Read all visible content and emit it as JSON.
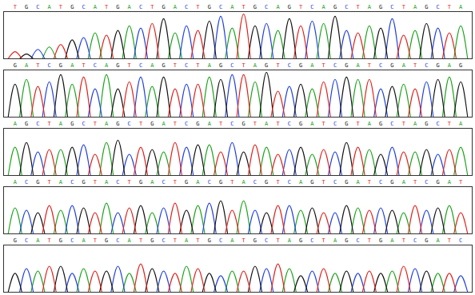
{
  "chart_data": [
    {
      "type": "line",
      "tick_labels": false,
      "grid": false,
      "xlim": [
        0,
        41
      ],
      "ylim": [
        0,
        100
      ],
      "series": [
        {
          "name": "A",
          "color": "#1aa31a",
          "x": [
            4,
            8,
            11,
            15,
            20,
            24,
            28,
            32,
            36,
            40
          ],
          "values": [
            25,
            55,
            70,
            55,
            65,
            60,
            75,
            70,
            60,
            70
          ]
        },
        {
          "name": "C",
          "color": "#1f3fe0",
          "x": [
            3,
            7,
            12,
            16,
            19,
            23,
            27,
            30,
            34,
            38
          ],
          "values": [
            20,
            45,
            65,
            70,
            90,
            75,
            80,
            60,
            85,
            65
          ]
        },
        {
          "name": "G",
          "color": "#111111",
          "x": [
            2,
            6,
            10,
            14,
            18,
            22,
            25,
            29,
            33,
            37
          ],
          "values": [
            10,
            40,
            60,
            85,
            80,
            70,
            85,
            90,
            65,
            75
          ]
        },
        {
          "name": "T",
          "color": "#e0201a",
          "x": [
            1,
            5,
            9,
            13,
            17,
            21,
            26,
            31,
            35,
            39
          ],
          "values": [
            15,
            30,
            50,
            75,
            60,
            95,
            70,
            55,
            50,
            55
          ]
        }
      ]
    },
    {
      "type": "line",
      "tick_labels": false,
      "grid": false,
      "xlim": [
        0,
        41
      ],
      "ylim": [
        0,
        100
      ],
      "series": [
        {
          "name": "A",
          "color": "#1aa31a",
          "x": [
            2,
            6,
            9,
            13,
            18,
            22,
            27,
            31,
            35,
            39
          ],
          "values": [
            80,
            70,
            90,
            65,
            85,
            75,
            60,
            80,
            70,
            85
          ]
        },
        {
          "name": "C",
          "color": "#1f3fe0",
          "x": [
            4,
            8,
            12,
            16,
            20,
            25,
            29,
            33,
            37
          ],
          "values": [
            75,
            60,
            85,
            70,
            90,
            65,
            80,
            60,
            75
          ]
        },
        {
          "name": "G",
          "color": "#111111",
          "x": [
            1,
            5,
            10,
            14,
            19,
            23,
            26,
            30,
            34,
            38,
            40
          ],
          "values": [
            70,
            90,
            60,
            85,
            80,
            95,
            70,
            85,
            65,
            80,
            75
          ]
        },
        {
          "name": "T",
          "color": "#e0201a",
          "x": [
            3,
            7,
            11,
            15,
            17,
            21,
            24,
            28,
            32,
            36
          ],
          "values": [
            65,
            85,
            75,
            60,
            70,
            90,
            55,
            75,
            80,
            60
          ]
        }
      ]
    },
    {
      "type": "line",
      "tick_labels": false,
      "grid": false,
      "xlim": [
        0,
        41
      ],
      "ylim": [
        0,
        100
      ],
      "series": [
        {
          "name": "A",
          "color": "#1aa31a",
          "x": [
            1,
            5,
            9,
            14,
            18,
            23,
            27,
            32,
            36,
            40
          ],
          "values": [
            60,
            55,
            70,
            50,
            65,
            60,
            45,
            55,
            50,
            60
          ]
        },
        {
          "name": "C",
          "color": "#1f3fe0",
          "x": [
            3,
            7,
            11,
            16,
            20,
            25,
            29,
            34,
            38
          ],
          "values": [
            50,
            65,
            45,
            60,
            70,
            55,
            50,
            60,
            45
          ]
        },
        {
          "name": "G",
          "color": "#111111",
          "x": [
            2,
            6,
            10,
            13,
            17,
            21,
            26,
            30,
            33,
            37
          ],
          "values": [
            70,
            60,
            75,
            55,
            65,
            50,
            60,
            70,
            45,
            55
          ]
        },
        {
          "name": "T",
          "color": "#e0201a",
          "x": [
            4,
            8,
            12,
            15,
            19,
            22,
            24,
            28,
            31,
            35,
            39
          ],
          "values": [
            55,
            45,
            60,
            70,
            50,
            65,
            45,
            55,
            60,
            50,
            55
          ]
        }
      ]
    },
    {
      "type": "line",
      "tick_labels": false,
      "grid": false,
      "xlim": [
        0,
        41
      ],
      "ylim": [
        0,
        100
      ],
      "series": [
        {
          "name": "A",
          "color": "#1aa31a",
          "x": [
            1,
            5,
            9,
            13,
            17,
            21,
            26,
            31,
            35,
            39
          ],
          "values": [
            55,
            50,
            65,
            45,
            60,
            70,
            50,
            55,
            45,
            60
          ]
        },
        {
          "name": "C",
          "color": "#1f3fe0",
          "x": [
            2,
            6,
            10,
            14,
            18,
            22,
            25,
            29,
            33,
            37
          ],
          "values": [
            50,
            60,
            45,
            55,
            65,
            50,
            60,
            45,
            55,
            50
          ]
        },
        {
          "name": "G",
          "color": "#111111",
          "x": [
            3,
            7,
            12,
            16,
            19,
            23,
            27,
            30,
            34,
            38
          ],
          "values": [
            45,
            55,
            60,
            50,
            70,
            45,
            55,
            60,
            50,
            55
          ]
        },
        {
          "name": "T",
          "color": "#e0201a",
          "x": [
            4,
            8,
            11,
            15,
            20,
            24,
            28,
            32,
            36,
            40
          ],
          "values": [
            60,
            45,
            55,
            65,
            50,
            60,
            45,
            50,
            60,
            45
          ]
        }
      ]
    },
    {
      "type": "line",
      "tick_labels": false,
      "grid": false,
      "xlim": [
        0,
        41
      ],
      "ylim": [
        0,
        100
      ],
      "series": [
        {
          "name": "A",
          "color": "#1aa31a",
          "x": [
            3,
            7,
            11,
            16,
            20,
            25,
            29,
            34,
            38
          ],
          "values": [
            45,
            50,
            40,
            55,
            45,
            50,
            40,
            45,
            40
          ]
        },
        {
          "name": "C",
          "color": "#1f3fe0",
          "x": [
            2,
            6,
            10,
            14,
            19,
            23,
            27,
            31,
            36,
            40
          ],
          "values": [
            50,
            40,
            55,
            45,
            35,
            50,
            45,
            40,
            50,
            35
          ]
        },
        {
          "name": "G",
          "color": "#111111",
          "x": [
            1,
            5,
            9,
            13,
            18,
            22,
            26,
            30,
            33,
            37
          ],
          "values": [
            40,
            55,
            45,
            50,
            40,
            55,
            35,
            45,
            40,
            45
          ]
        },
        {
          "name": "T",
          "color": "#e0201a",
          "x": [
            4,
            8,
            12,
            15,
            17,
            21,
            24,
            28,
            32,
            35,
            39
          ],
          "values": [
            55,
            45,
            60,
            40,
            50,
            45,
            60,
            50,
            45,
            55,
            40
          ]
        }
      ]
    }
  ]
}
